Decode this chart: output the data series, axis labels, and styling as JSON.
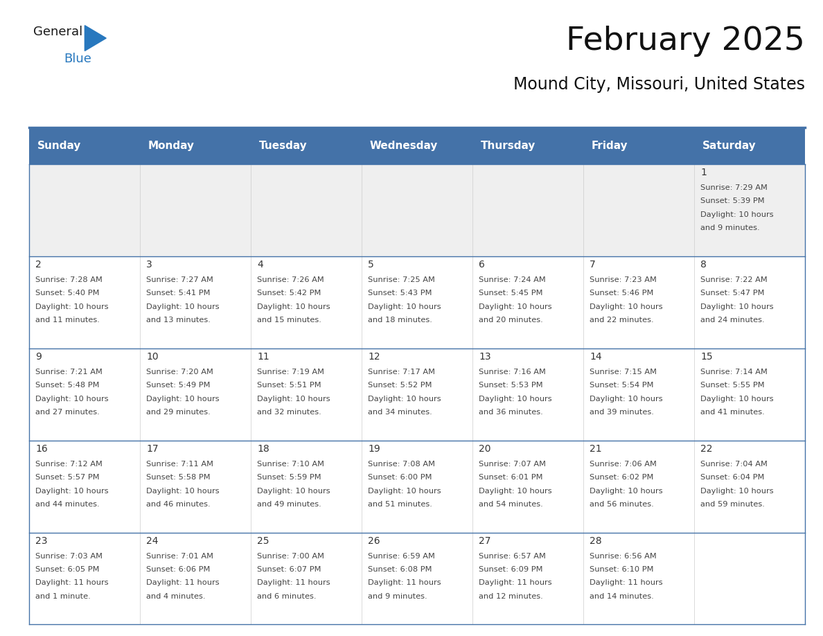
{
  "title": "February 2025",
  "subtitle": "Mound City, Missouri, United States",
  "header_bg": "#4472A8",
  "header_text_color": "#FFFFFF",
  "cell_bg_white": "#FFFFFF",
  "cell_bg_first_row": "#EFEFEF",
  "row_separator_color": "#4472A8",
  "col_separator_color": "#CCCCCC",
  "outer_border_color": "#4472A8",
  "text_color": "#444444",
  "date_color": "#333333",
  "day_headers": [
    "Sunday",
    "Monday",
    "Tuesday",
    "Wednesday",
    "Thursday",
    "Friday",
    "Saturday"
  ],
  "days": [
    {
      "date": 1,
      "col": 6,
      "row": 0,
      "sunrise": "7:29 AM",
      "sunset": "5:39 PM",
      "daylight_line1": "Daylight: 10 hours",
      "daylight_line2": "and 9 minutes."
    },
    {
      "date": 2,
      "col": 0,
      "row": 1,
      "sunrise": "7:28 AM",
      "sunset": "5:40 PM",
      "daylight_line1": "Daylight: 10 hours",
      "daylight_line2": "and 11 minutes."
    },
    {
      "date": 3,
      "col": 1,
      "row": 1,
      "sunrise": "7:27 AM",
      "sunset": "5:41 PM",
      "daylight_line1": "Daylight: 10 hours",
      "daylight_line2": "and 13 minutes."
    },
    {
      "date": 4,
      "col": 2,
      "row": 1,
      "sunrise": "7:26 AM",
      "sunset": "5:42 PM",
      "daylight_line1": "Daylight: 10 hours",
      "daylight_line2": "and 15 minutes."
    },
    {
      "date": 5,
      "col": 3,
      "row": 1,
      "sunrise": "7:25 AM",
      "sunset": "5:43 PM",
      "daylight_line1": "Daylight: 10 hours",
      "daylight_line2": "and 18 minutes."
    },
    {
      "date": 6,
      "col": 4,
      "row": 1,
      "sunrise": "7:24 AM",
      "sunset": "5:45 PM",
      "daylight_line1": "Daylight: 10 hours",
      "daylight_line2": "and 20 minutes."
    },
    {
      "date": 7,
      "col": 5,
      "row": 1,
      "sunrise": "7:23 AM",
      "sunset": "5:46 PM",
      "daylight_line1": "Daylight: 10 hours",
      "daylight_line2": "and 22 minutes."
    },
    {
      "date": 8,
      "col": 6,
      "row": 1,
      "sunrise": "7:22 AM",
      "sunset": "5:47 PM",
      "daylight_line1": "Daylight: 10 hours",
      "daylight_line2": "and 24 minutes."
    },
    {
      "date": 9,
      "col": 0,
      "row": 2,
      "sunrise": "7:21 AM",
      "sunset": "5:48 PM",
      "daylight_line1": "Daylight: 10 hours",
      "daylight_line2": "and 27 minutes."
    },
    {
      "date": 10,
      "col": 1,
      "row": 2,
      "sunrise": "7:20 AM",
      "sunset": "5:49 PM",
      "daylight_line1": "Daylight: 10 hours",
      "daylight_line2": "and 29 minutes."
    },
    {
      "date": 11,
      "col": 2,
      "row": 2,
      "sunrise": "7:19 AM",
      "sunset": "5:51 PM",
      "daylight_line1": "Daylight: 10 hours",
      "daylight_line2": "and 32 minutes."
    },
    {
      "date": 12,
      "col": 3,
      "row": 2,
      "sunrise": "7:17 AM",
      "sunset": "5:52 PM",
      "daylight_line1": "Daylight: 10 hours",
      "daylight_line2": "and 34 minutes."
    },
    {
      "date": 13,
      "col": 4,
      "row": 2,
      "sunrise": "7:16 AM",
      "sunset": "5:53 PM",
      "daylight_line1": "Daylight: 10 hours",
      "daylight_line2": "and 36 minutes."
    },
    {
      "date": 14,
      "col": 5,
      "row": 2,
      "sunrise": "7:15 AM",
      "sunset": "5:54 PM",
      "daylight_line1": "Daylight: 10 hours",
      "daylight_line2": "and 39 minutes."
    },
    {
      "date": 15,
      "col": 6,
      "row": 2,
      "sunrise": "7:14 AM",
      "sunset": "5:55 PM",
      "daylight_line1": "Daylight: 10 hours",
      "daylight_line2": "and 41 minutes."
    },
    {
      "date": 16,
      "col": 0,
      "row": 3,
      "sunrise": "7:12 AM",
      "sunset": "5:57 PM",
      "daylight_line1": "Daylight: 10 hours",
      "daylight_line2": "and 44 minutes."
    },
    {
      "date": 17,
      "col": 1,
      "row": 3,
      "sunrise": "7:11 AM",
      "sunset": "5:58 PM",
      "daylight_line1": "Daylight: 10 hours",
      "daylight_line2": "and 46 minutes."
    },
    {
      "date": 18,
      "col": 2,
      "row": 3,
      "sunrise": "7:10 AM",
      "sunset": "5:59 PM",
      "daylight_line1": "Daylight: 10 hours",
      "daylight_line2": "and 49 minutes."
    },
    {
      "date": 19,
      "col": 3,
      "row": 3,
      "sunrise": "7:08 AM",
      "sunset": "6:00 PM",
      "daylight_line1": "Daylight: 10 hours",
      "daylight_line2": "and 51 minutes."
    },
    {
      "date": 20,
      "col": 4,
      "row": 3,
      "sunrise": "7:07 AM",
      "sunset": "6:01 PM",
      "daylight_line1": "Daylight: 10 hours",
      "daylight_line2": "and 54 minutes."
    },
    {
      "date": 21,
      "col": 5,
      "row": 3,
      "sunrise": "7:06 AM",
      "sunset": "6:02 PM",
      "daylight_line1": "Daylight: 10 hours",
      "daylight_line2": "and 56 minutes."
    },
    {
      "date": 22,
      "col": 6,
      "row": 3,
      "sunrise": "7:04 AM",
      "sunset": "6:04 PM",
      "daylight_line1": "Daylight: 10 hours",
      "daylight_line2": "and 59 minutes."
    },
    {
      "date": 23,
      "col": 0,
      "row": 4,
      "sunrise": "7:03 AM",
      "sunset": "6:05 PM",
      "daylight_line1": "Daylight: 11 hours",
      "daylight_line2": "and 1 minute."
    },
    {
      "date": 24,
      "col": 1,
      "row": 4,
      "sunrise": "7:01 AM",
      "sunset": "6:06 PM",
      "daylight_line1": "Daylight: 11 hours",
      "daylight_line2": "and 4 minutes."
    },
    {
      "date": 25,
      "col": 2,
      "row": 4,
      "sunrise": "7:00 AM",
      "sunset": "6:07 PM",
      "daylight_line1": "Daylight: 11 hours",
      "daylight_line2": "and 6 minutes."
    },
    {
      "date": 26,
      "col": 3,
      "row": 4,
      "sunrise": "6:59 AM",
      "sunset": "6:08 PM",
      "daylight_line1": "Daylight: 11 hours",
      "daylight_line2": "and 9 minutes."
    },
    {
      "date": 27,
      "col": 4,
      "row": 4,
      "sunrise": "6:57 AM",
      "sunset": "6:09 PM",
      "daylight_line1": "Daylight: 11 hours",
      "daylight_line2": "and 12 minutes."
    },
    {
      "date": 28,
      "col": 5,
      "row": 4,
      "sunrise": "6:56 AM",
      "sunset": "6:10 PM",
      "daylight_line1": "Daylight: 11 hours",
      "daylight_line2": "and 14 minutes."
    }
  ],
  "logo_text1": "General",
  "logo_text2": "Blue",
  "logo_color1": "#1a1a1a",
  "logo_color2": "#2878BE",
  "logo_triangle_color": "#2878BE",
  "fig_width": 11.88,
  "fig_height": 9.18,
  "dpi": 100
}
